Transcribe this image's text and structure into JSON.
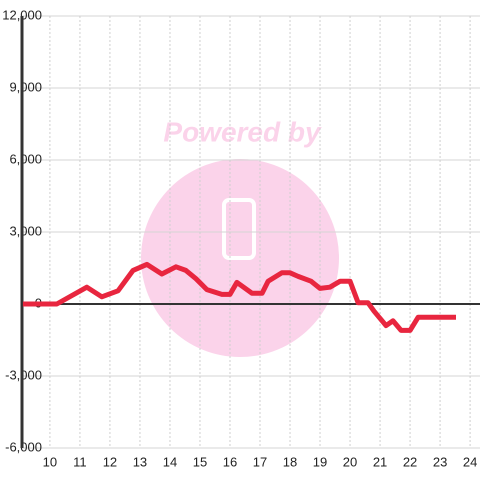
{
  "chart_data": {
    "type": "line",
    "watermark": "Powered by",
    "x": [
      9.1,
      10.23,
      11.23,
      11.73,
      12.27,
      12.77,
      13.23,
      13.73,
      14.2,
      14.53,
      14.87,
      15.23,
      15.73,
      16.0,
      16.23,
      16.73,
      17.07,
      17.27,
      17.73,
      18.0,
      18.27,
      18.7,
      19.0,
      19.33,
      19.67,
      20.0,
      20.27,
      20.6,
      20.8,
      21.2,
      21.43,
      21.7,
      22.0,
      22.27,
      23.53
    ],
    "series": [
      {
        "color": "#e8263f",
        "values": [
          0,
          0,
          700,
          300,
          550,
          1400,
          1650,
          1250,
          1550,
          1400,
          1050,
          600,
          400,
          400,
          900,
          450,
          450,
          950,
          1300,
          1300,
          1150,
          950,
          650,
          700,
          950,
          950,
          50,
          50,
          -300,
          -900,
          -700,
          -1100,
          -1100,
          -550,
          -550
        ]
      }
    ],
    "xlim": [
      9.07,
      24.33
    ],
    "xticks": [
      10,
      11,
      12,
      13,
      14,
      15,
      16,
      17,
      18,
      19,
      20,
      21,
      22,
      23,
      24
    ],
    "ylim": [
      -6000,
      12000
    ],
    "yticks": [
      {
        "value": 12000,
        "label": "12,000"
      },
      {
        "value": 9000,
        "label": "9,000"
      },
      {
        "value": 6000,
        "label": "6,000"
      },
      {
        "value": 3000,
        "label": "3,000"
      },
      0,
      {
        "value": -3000,
        "label": "-3,000"
      },
      {
        "value": -6000,
        "label": "-6,000"
      }
    ],
    "grid": true
  }
}
